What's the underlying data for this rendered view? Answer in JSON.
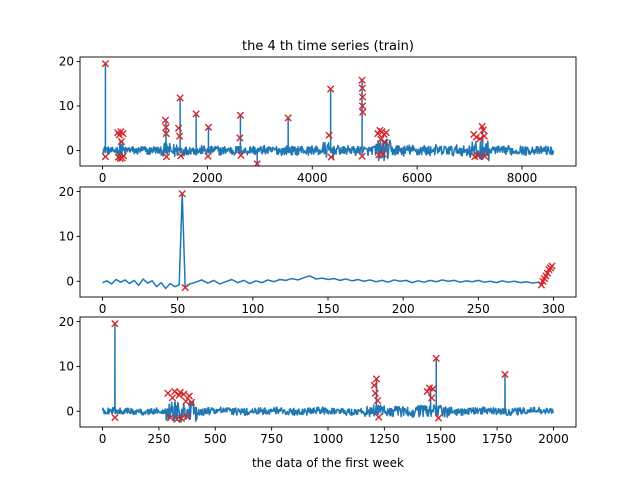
{
  "chart_data": [
    {
      "type": "line",
      "title": "the 4 th time series (train)",
      "xlabel": "",
      "ylabel": "",
      "xlim": [
        -430,
        9030
      ],
      "ylim": [
        -3.5,
        21
      ],
      "xticks": [
        0,
        2000,
        4000,
        6000,
        8000
      ],
      "yticks": [
        0,
        10,
        20
      ],
      "series_color": "#1f77b4",
      "marker_color": "#d62728",
      "marker_style": "x",
      "baseline": {
        "x_start": 0,
        "x_end": 8600,
        "noise_segments": [
          {
            "x": [
              0,
              280
            ],
            "amp": 0.8
          },
          {
            "x": [
              280,
              420
            ],
            "amp": 2.2
          },
          {
            "x": [
              420,
              1150
            ],
            "amp": 0.9
          },
          {
            "x": [
              1150,
              1550
            ],
            "amp": 1.6
          },
          {
            "x": [
              1550,
              4200
            ],
            "amp": 1.0
          },
          {
            "x": [
              4200,
              4400
            ],
            "amp": 1.8
          },
          {
            "x": [
              4400,
              5200
            ],
            "amp": 1.0
          },
          {
            "x": [
              5200,
              5500
            ],
            "amp": 2.4
          },
          {
            "x": [
              5500,
              7000
            ],
            "amp": 1.2
          },
          {
            "x": [
              7000,
              7400
            ],
            "amp": 2.2
          },
          {
            "x": [
              7400,
              8600
            ],
            "amp": 1.0
          }
        ]
      },
      "spikes": [
        {
          "x": 55,
          "y": 19.5
        },
        {
          "x": 1210,
          "y": 6.8
        },
        {
          "x": 1480,
          "y": 11.8
        },
        {
          "x": 1785,
          "y": 8.2
        },
        {
          "x": 2020,
          "y": 5.2
        },
        {
          "x": 2630,
          "y": 7.9
        },
        {
          "x": 3540,
          "y": 7.3
        },
        {
          "x": 4350,
          "y": 13.8
        },
        {
          "x": 4950,
          "y": 15.8
        },
        {
          "x": 7250,
          "y": 5.4
        }
      ],
      "dips": [
        {
          "x": 2950,
          "y": -3.0
        }
      ],
      "anomalies": [
        {
          "x": 55,
          "y": 19.5
        },
        {
          "x": 55,
          "y": -1.4
        },
        {
          "x": 290,
          "y": 4.0
        },
        {
          "x": 300,
          "y": -1.5
        },
        {
          "x": 320,
          "y": 3.5
        },
        {
          "x": 335,
          "y": -1.8
        },
        {
          "x": 350,
          "y": 4.2
        },
        {
          "x": 360,
          "y": 2.0
        },
        {
          "x": 375,
          "y": -1.7
        },
        {
          "x": 390,
          "y": 3.8
        },
        {
          "x": 400,
          "y": -1.2
        },
        {
          "x": 1200,
          "y": 6.8
        },
        {
          "x": 1210,
          "y": 5.2
        },
        {
          "x": 1215,
          "y": 3.8
        },
        {
          "x": 1220,
          "y": -1.4
        },
        {
          "x": 1450,
          "y": 5.0
        },
        {
          "x": 1480,
          "y": 11.8
        },
        {
          "x": 1490,
          "y": -1.2
        },
        {
          "x": 1470,
          "y": 3.2
        },
        {
          "x": 1785,
          "y": 8.2
        },
        {
          "x": 2020,
          "y": 5.2
        },
        {
          "x": 2010,
          "y": -1.3
        },
        {
          "x": 2630,
          "y": 7.9
        },
        {
          "x": 2620,
          "y": 2.8
        },
        {
          "x": 2640,
          "y": -1.1
        },
        {
          "x": 2950,
          "y": -3.0
        },
        {
          "x": 3540,
          "y": 7.3
        },
        {
          "x": 4320,
          "y": 3.4
        },
        {
          "x": 4350,
          "y": 13.8
        },
        {
          "x": 4360,
          "y": -1.5
        },
        {
          "x": 4950,
          "y": 15.8
        },
        {
          "x": 4955,
          "y": 14.0
        },
        {
          "x": 4960,
          "y": 12.0
        },
        {
          "x": 4958,
          "y": 10.0
        },
        {
          "x": 4962,
          "y": 8.6
        },
        {
          "x": 4950,
          "y": -1.3
        },
        {
          "x": 5250,
          "y": 3.8
        },
        {
          "x": 5270,
          "y": -1.0
        },
        {
          "x": 5290,
          "y": 4.5
        },
        {
          "x": 5310,
          "y": 2.5
        },
        {
          "x": 5330,
          "y": 4.2
        },
        {
          "x": 5350,
          "y": -0.8
        },
        {
          "x": 5370,
          "y": 3.6
        },
        {
          "x": 5390,
          "y": 1.8
        },
        {
          "x": 5410,
          "y": 4.0
        },
        {
          "x": 7080,
          "y": 3.6
        },
        {
          "x": 7100,
          "y": -1.4
        },
        {
          "x": 7130,
          "y": 3.0
        },
        {
          "x": 7160,
          "y": -1.2
        },
        {
          "x": 7200,
          "y": 2.6
        },
        {
          "x": 7240,
          "y": 5.4
        },
        {
          "x": 7260,
          "y": 4.6
        },
        {
          "x": 7280,
          "y": 3.2
        },
        {
          "x": 7290,
          "y": -1.3
        }
      ]
    },
    {
      "type": "line",
      "title": "",
      "xlabel": "",
      "ylabel": "",
      "xlim": [
        -15,
        315
      ],
      "ylim": [
        -3.5,
        21
      ],
      "xticks": [
        0,
        50,
        100,
        150,
        200,
        250,
        300
      ],
      "yticks": [
        0,
        10,
        20
      ],
      "series_color": "#1f77b4",
      "marker_color": "#d62728",
      "marker_style": "x",
      "points": [
        [
          0,
          -0.3
        ],
        [
          3,
          0.1
        ],
        [
          6,
          -0.6
        ],
        [
          9,
          0.4
        ],
        [
          12,
          -0.2
        ],
        [
          15,
          0.3
        ],
        [
          18,
          -0.5
        ],
        [
          21,
          0.2
        ],
        [
          24,
          -0.9
        ],
        [
          27,
          0.5
        ],
        [
          30,
          -0.4
        ],
        [
          33,
          0.1
        ],
        [
          36,
          -1.2
        ],
        [
          39,
          -0.3
        ],
        [
          42,
          -1.6
        ],
        [
          45,
          -0.5
        ],
        [
          48,
          -1.2
        ],
        [
          51,
          -0.8
        ],
        [
          53,
          19.5
        ],
        [
          55,
          -1.4
        ],
        [
          58,
          -0.6
        ],
        [
          62,
          -0.2
        ],
        [
          66,
          0.3
        ],
        [
          70,
          -0.4
        ],
        [
          74,
          0.2
        ],
        [
          78,
          -0.6
        ],
        [
          82,
          -0.1
        ],
        [
          86,
          0.4
        ],
        [
          90,
          -0.3
        ],
        [
          94,
          0.2
        ],
        [
          98,
          -0.5
        ],
        [
          102,
          0.1
        ],
        [
          106,
          -0.3
        ],
        [
          110,
          0.3
        ],
        [
          114,
          -0.1
        ],
        [
          118,
          0.4
        ],
        [
          122,
          0.2
        ],
        [
          126,
          0.6
        ],
        [
          130,
          0.3
        ],
        [
          134,
          0.8
        ],
        [
          138,
          1.2
        ],
        [
          142,
          0.5
        ],
        [
          146,
          0.7
        ],
        [
          150,
          0.4
        ],
        [
          154,
          0.6
        ],
        [
          158,
          0.2
        ],
        [
          162,
          0.5
        ],
        [
          166,
          0.1
        ],
        [
          170,
          0.4
        ],
        [
          174,
          0.0
        ],
        [
          178,
          0.3
        ],
        [
          182,
          -0.1
        ],
        [
          186,
          0.2
        ],
        [
          190,
          -0.2
        ],
        [
          194,
          0.3
        ],
        [
          198,
          0.0
        ],
        [
          202,
          0.2
        ],
        [
          206,
          -0.3
        ],
        [
          210,
          0.1
        ],
        [
          214,
          -0.2
        ],
        [
          218,
          0.2
        ],
        [
          222,
          -0.1
        ],
        [
          226,
          0.3
        ],
        [
          230,
          0.0
        ],
        [
          234,
          0.2
        ],
        [
          238,
          -0.2
        ],
        [
          242,
          0.1
        ],
        [
          246,
          -0.1
        ],
        [
          250,
          0.2
        ],
        [
          254,
          -0.2
        ],
        [
          258,
          0.0
        ],
        [
          262,
          -0.3
        ],
        [
          266,
          0.1
        ],
        [
          270,
          -0.2
        ],
        [
          274,
          0.0
        ],
        [
          278,
          -0.3
        ],
        [
          282,
          -0.1
        ],
        [
          286,
          -0.4
        ],
        [
          290,
          -0.2
        ],
        [
          292,
          -0.8
        ],
        [
          293,
          0.0
        ],
        [
          294,
          0.6
        ],
        [
          295,
          1.2
        ],
        [
          296,
          1.6
        ],
        [
          297,
          2.2
        ],
        [
          298,
          2.8
        ],
        [
          299,
          3.2
        ]
      ],
      "anomalies": [
        {
          "x": 53,
          "y": 19.5
        },
        {
          "x": 55,
          "y": -1.4
        },
        {
          "x": 292,
          "y": -0.8
        },
        {
          "x": 293,
          "y": 0.0
        },
        {
          "x": 294,
          "y": 0.6
        },
        {
          "x": 295,
          "y": 1.2
        },
        {
          "x": 296,
          "y": 1.8
        },
        {
          "x": 297,
          "y": 2.6
        },
        {
          "x": 298,
          "y": 3.0
        },
        {
          "x": 299,
          "y": 3.4
        }
      ]
    },
    {
      "type": "line",
      "title": "",
      "xlabel": "the data of the first week",
      "ylabel": "",
      "xlim": [
        -100,
        2100
      ],
      "ylim": [
        -3.5,
        21
      ],
      "xticks": [
        0,
        250,
        500,
        750,
        1000,
        1250,
        1500,
        1750,
        2000
      ],
      "yticks": [
        0,
        10,
        20
      ],
      "series_color": "#1f77b4",
      "marker_color": "#d62728",
      "marker_style": "x",
      "baseline": {
        "x_start": 0,
        "x_end": 2000,
        "noise_segments": [
          {
            "x": [
              0,
              280
            ],
            "amp": 0.7
          },
          {
            "x": [
              280,
              420
            ],
            "amp": 2.4
          },
          {
            "x": [
              420,
              1150
            ],
            "amp": 0.8
          },
          {
            "x": [
              1150,
              1550
            ],
            "amp": 1.3
          },
          {
            "x": [
              1550,
              2000
            ],
            "amp": 0.8
          }
        ]
      },
      "spikes": [
        {
          "x": 55,
          "y": 19.5
        },
        {
          "x": 1215,
          "y": 7.2
        },
        {
          "x": 1455,
          "y": 5.2
        },
        {
          "x": 1480,
          "y": 11.8
        },
        {
          "x": 1785,
          "y": 8.2
        }
      ],
      "dips": [],
      "anomalies": [
        {
          "x": 55,
          "y": 19.5
        },
        {
          "x": 55,
          "y": -1.4
        },
        {
          "x": 290,
          "y": 4.0
        },
        {
          "x": 300,
          "y": -1.4
        },
        {
          "x": 310,
          "y": 3.0
        },
        {
          "x": 320,
          "y": 4.4
        },
        {
          "x": 330,
          "y": -1.8
        },
        {
          "x": 340,
          "y": 3.6
        },
        {
          "x": 345,
          "y": 4.2
        },
        {
          "x": 350,
          "y": -1.6
        },
        {
          "x": 360,
          "y": 3.8
        },
        {
          "x": 370,
          "y": 2.2
        },
        {
          "x": 375,
          "y": -1.2
        },
        {
          "x": 385,
          "y": 3.4
        },
        {
          "x": 395,
          "y": 2.0
        },
        {
          "x": 1205,
          "y": 5.8
        },
        {
          "x": 1210,
          "y": 4.0
        },
        {
          "x": 1215,
          "y": 7.2
        },
        {
          "x": 1220,
          "y": 2.4
        },
        {
          "x": 1225,
          "y": -1.3
        },
        {
          "x": 1440,
          "y": 4.4
        },
        {
          "x": 1450,
          "y": 5.2
        },
        {
          "x": 1460,
          "y": 3.0
        },
        {
          "x": 1465,
          "y": 5.0
        },
        {
          "x": 1480,
          "y": 11.8
        },
        {
          "x": 1490,
          "y": -1.5
        },
        {
          "x": 1785,
          "y": 8.2
        }
      ]
    }
  ]
}
